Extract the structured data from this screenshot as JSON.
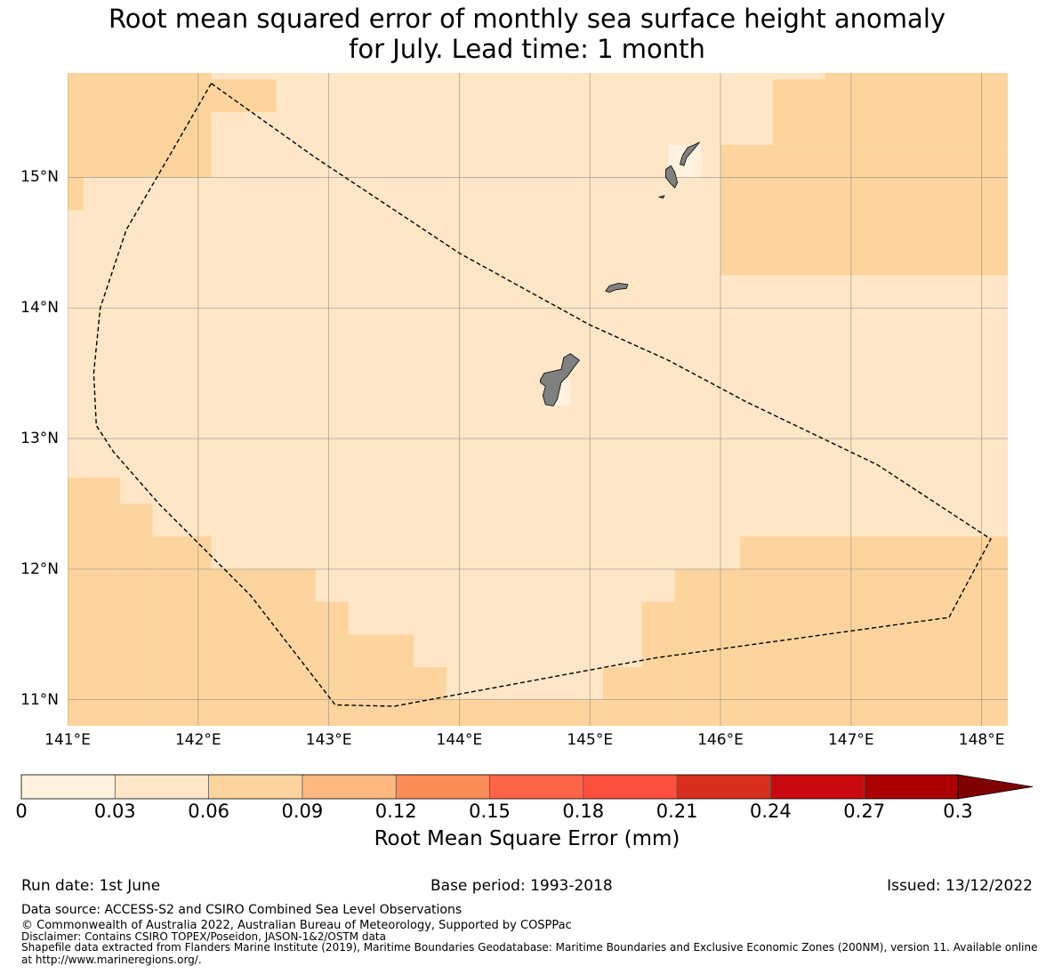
{
  "title": {
    "line1": "Root mean squared error of monthly sea surface height anomaly",
    "line2": "for July. Lead time: 1 month"
  },
  "map": {
    "extent": {
      "lon_min": 141.0,
      "lon_max": 148.2,
      "lat_min": 10.8,
      "lat_max": 15.8
    },
    "lat_ticks": [
      {
        "value": 15,
        "label": "15°N"
      },
      {
        "value": 14,
        "label": "14°N"
      },
      {
        "value": 13,
        "label": "13°N"
      },
      {
        "value": 12,
        "label": "12°N"
      },
      {
        "value": 11,
        "label": "11°N"
      }
    ],
    "lon_ticks": [
      {
        "value": 141,
        "label": "141°E"
      },
      {
        "value": 142,
        "label": "142°E"
      },
      {
        "value": 143,
        "label": "143°E"
      },
      {
        "value": 144,
        "label": "144°E"
      },
      {
        "value": 145,
        "label": "145°E"
      },
      {
        "value": 146,
        "label": "146°E"
      },
      {
        "value": 147,
        "label": "147°E"
      },
      {
        "value": 148,
        "label": "148°E"
      }
    ],
    "colors": {
      "bin_0_03": "#fff2df",
      "bin_03_06": "#fee6c7",
      "bin_06_09": "#fdd49d",
      "land": "#808080",
      "grid": "#7f7f7f",
      "eez_line": "#000000"
    },
    "base_bin": "bin_03_06",
    "cells": [
      {
        "lon1": 141.0,
        "lon2": 142.1,
        "lat1": 15.0,
        "lat2": 15.8,
        "bin": "bin_06_09"
      },
      {
        "lon1": 142.1,
        "lon2": 142.6,
        "lat1": 15.5,
        "lat2": 15.75,
        "bin": "bin_06_09"
      },
      {
        "lon1": 141.0,
        "lon2": 141.12,
        "lat1": 14.75,
        "lat2": 15.0,
        "bin": "bin_06_09"
      },
      {
        "lon1": 146.0,
        "lon2": 148.2,
        "lat1": 14.25,
        "lat2": 15.25,
        "bin": "bin_06_09"
      },
      {
        "lon1": 146.4,
        "lon2": 148.2,
        "lat1": 15.25,
        "lat2": 15.75,
        "bin": "bin_06_09"
      },
      {
        "lon1": 146.8,
        "lon2": 148.2,
        "lat1": 15.75,
        "lat2": 15.8,
        "bin": "bin_06_09"
      },
      {
        "lon1": 148.05,
        "lon2": 148.2,
        "lat1": 14.5,
        "lat2": 15.0,
        "bin": "bin_06_09"
      },
      {
        "lon1": 141.0,
        "lon2": 141.4,
        "lat1": 10.8,
        "lat2": 12.7,
        "bin": "bin_06_09"
      },
      {
        "lon1": 141.4,
        "lon2": 141.65,
        "lat1": 10.8,
        "lat2": 12.5,
        "bin": "bin_06_09"
      },
      {
        "lon1": 141.65,
        "lon2": 142.1,
        "lat1": 10.8,
        "lat2": 12.25,
        "bin": "bin_06_09"
      },
      {
        "lon1": 142.1,
        "lon2": 142.9,
        "lat1": 10.8,
        "lat2": 12.0,
        "bin": "bin_06_09"
      },
      {
        "lon1": 142.9,
        "lon2": 143.15,
        "lat1": 10.8,
        "lat2": 11.75,
        "bin": "bin_06_09"
      },
      {
        "lon1": 143.15,
        "lon2": 143.65,
        "lat1": 10.8,
        "lat2": 11.5,
        "bin": "bin_06_09"
      },
      {
        "lon1": 143.65,
        "lon2": 143.9,
        "lat1": 10.8,
        "lat2": 11.25,
        "bin": "bin_06_09"
      },
      {
        "lon1": 143.9,
        "lon2": 145.1,
        "lat1": 10.8,
        "lat2": 11.0,
        "bin": "bin_06_09"
      },
      {
        "lon1": 145.1,
        "lon2": 145.4,
        "lat1": 10.8,
        "lat2": 11.25,
        "bin": "bin_06_09"
      },
      {
        "lon1": 145.4,
        "lon2": 145.65,
        "lat1": 10.8,
        "lat2": 11.75,
        "bin": "bin_06_09"
      },
      {
        "lon1": 145.65,
        "lon2": 146.15,
        "lat1": 10.8,
        "lat2": 12.0,
        "bin": "bin_06_09"
      },
      {
        "lon1": 146.15,
        "lon2": 148.2,
        "lat1": 10.8,
        "lat2": 12.25,
        "bin": "bin_06_09"
      },
      {
        "lon1": 145.6,
        "lon2": 145.85,
        "lat1": 15.0,
        "lat2": 15.25,
        "bin": "bin_0_03"
      },
      {
        "lon1": 144.65,
        "lon2": 144.85,
        "lat1": 13.25,
        "lat2": 13.45,
        "bin": "bin_0_03"
      }
    ],
    "land": [
      {
        "name": "guam",
        "points": [
          [
            144.62,
            13.45
          ],
          [
            144.65,
            13.5
          ],
          [
            144.78,
            13.53
          ],
          [
            144.8,
            13.62
          ],
          [
            144.85,
            13.65
          ],
          [
            144.92,
            13.6
          ],
          [
            144.88,
            13.55
          ],
          [
            144.83,
            13.48
          ],
          [
            144.78,
            13.43
          ],
          [
            144.75,
            13.3
          ],
          [
            144.72,
            13.25
          ],
          [
            144.66,
            13.26
          ],
          [
            144.64,
            13.33
          ],
          [
            144.66,
            13.4
          ],
          [
            144.62,
            13.43
          ]
        ]
      },
      {
        "name": "rota",
        "points": [
          [
            145.12,
            14.13
          ],
          [
            145.15,
            14.17
          ],
          [
            145.22,
            14.19
          ],
          [
            145.29,
            14.18
          ],
          [
            145.28,
            14.15
          ],
          [
            145.2,
            14.14
          ],
          [
            145.15,
            14.12
          ]
        ]
      },
      {
        "name": "tinian",
        "points": [
          [
            145.58,
            15.0
          ],
          [
            145.62,
            14.95
          ],
          [
            145.65,
            14.92
          ],
          [
            145.67,
            14.96
          ],
          [
            145.65,
            15.04
          ],
          [
            145.62,
            15.09
          ],
          [
            145.58,
            15.06
          ]
        ]
      },
      {
        "name": "saipan",
        "points": [
          [
            145.69,
            15.1
          ],
          [
            145.72,
            15.09
          ],
          [
            145.74,
            15.15
          ],
          [
            145.8,
            15.22
          ],
          [
            145.84,
            15.27
          ],
          [
            145.8,
            15.25
          ],
          [
            145.75,
            15.23
          ],
          [
            145.71,
            15.17
          ]
        ]
      },
      {
        "name": "aguijan",
        "points": [
          [
            145.53,
            14.85
          ],
          [
            145.57,
            14.86
          ],
          [
            145.56,
            14.84
          ]
        ]
      }
    ],
    "eez_boundary": [
      [
        142.1,
        15.72
      ],
      [
        142.9,
        15.15
      ],
      [
        144.0,
        14.42
      ],
      [
        145.0,
        13.87
      ],
      [
        145.6,
        13.6
      ],
      [
        146.2,
        13.28
      ],
      [
        147.2,
        12.8
      ],
      [
        148.07,
        12.23
      ],
      [
        147.75,
        11.63
      ],
      [
        145.5,
        11.32
      ],
      [
        143.5,
        10.95
      ],
      [
        143.05,
        10.96
      ],
      [
        142.4,
        11.8
      ],
      [
        141.7,
        12.5
      ],
      [
        141.35,
        12.9
      ],
      [
        141.22,
        13.1
      ],
      [
        141.2,
        13.5
      ],
      [
        141.25,
        14.0
      ],
      [
        141.45,
        14.6
      ],
      [
        141.8,
        15.2
      ],
      [
        142.1,
        15.72
      ]
    ]
  },
  "colorbar": {
    "label": "Root Mean Square Error (mm)",
    "bins": [
      {
        "from": "0",
        "to": "0.03",
        "color": "#fff2df"
      },
      {
        "from": "0.03",
        "to": "0.06",
        "color": "#fee6c7"
      },
      {
        "from": "0.06",
        "to": "0.09",
        "color": "#fdd49d"
      },
      {
        "from": "0.09",
        "to": "0.12",
        "color": "#fdb97f"
      },
      {
        "from": "0.12",
        "to": "0.15",
        "color": "#fc8d59"
      },
      {
        "from": "0.15",
        "to": "0.18",
        "color": "#fe6448"
      },
      {
        "from": "0.18",
        "to": "0.21",
        "color": "#fe4e3e"
      },
      {
        "from": "0.21",
        "to": "0.24",
        "color": "#d72f1e"
      },
      {
        "from": "0.24",
        "to": "0.27",
        "color": "#c80a10"
      },
      {
        "from": "0.27",
        "to": "0.3",
        "color": "#aa0000"
      }
    ],
    "extend_color": "#7f0000",
    "ticks": [
      "0",
      "0.03",
      "0.06",
      "0.09",
      "0.12",
      "0.15",
      "0.18",
      "0.21",
      "0.24",
      "0.27",
      "0.3"
    ]
  },
  "footer": {
    "run_date": "Run date: 1st June",
    "base_period": "Base period: 1993-2018",
    "issued": "Issued: 13/12/2022",
    "data_source": "Data source: ACCESS-S2 and CSIRO Combined Sea Level Observations",
    "copyright": "© Commonwealth of Australia 2022, Australian Bureau of Meteorology, Supported by COSPPac",
    "disclaimer": "Disclaimer: Contains CSIRO TOPEX/Poseidon, JASON-1&2/OSTM data",
    "shapefile_line1": "Shapefile data extracted from Flanders Marine Institute (2019), Maritime Boundaries Geodatabase: Maritime Boundaries and Exclusive Economic Zones (200NM), version 11. Available online",
    "shapefile_line2": "at http://www.marineregions.org/."
  }
}
